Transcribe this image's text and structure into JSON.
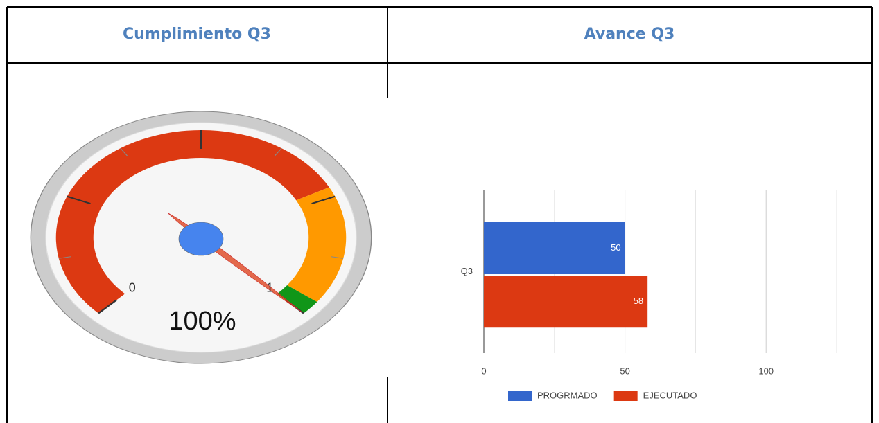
{
  "table": {
    "headers": [
      "Cumplimiento Q3",
      "Avance Q3"
    ]
  },
  "chart_data": [
    {
      "type": "gauge",
      "lim": [
        0,
        1
      ],
      "ticks": [
        0,
        1
      ],
      "major_ticks": 4,
      "minor_ticks": 2,
      "value": 1,
      "value_label": "100%",
      "bands": [
        {
          "from": 0,
          "to": 0.73,
          "color": "#dc3912"
        },
        {
          "from": 0.73,
          "to": 0.97,
          "color": "#ff9900"
        },
        {
          "from": 0.97,
          "to": 1,
          "color": "#109618"
        }
      ]
    },
    {
      "type": "hbar",
      "categories": [
        "Q3"
      ],
      "series": [
        {
          "name": "PROGRMADO",
          "color": "#3366cc",
          "values": [
            50
          ]
        },
        {
          "name": "EJECUTADO",
          "color": "#dc3912",
          "values": [
            58
          ]
        }
      ],
      "xlim": [
        0,
        125
      ],
      "xticks": [
        0,
        50,
        100
      ],
      "minor_grid": [
        25,
        75,
        125
      ],
      "legend": "bottom"
    }
  ]
}
